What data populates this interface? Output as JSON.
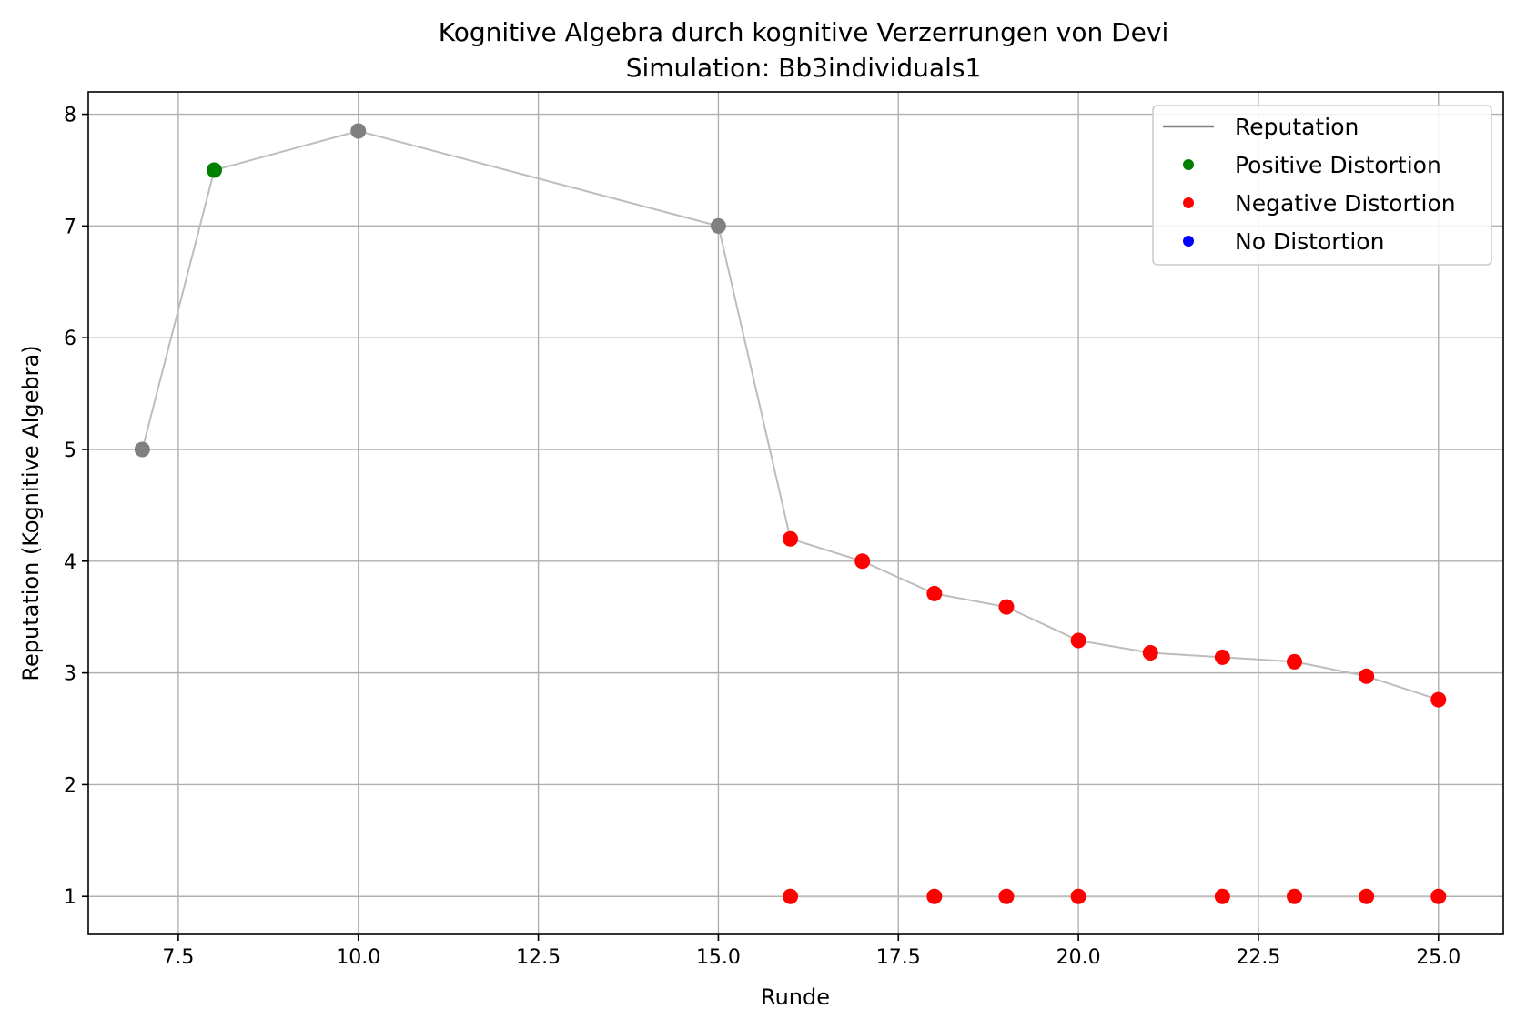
{
  "chart_data": {
    "type": "line",
    "title": "Kognitive Algebra durch kognitive Verzerrungen von Devi",
    "subtitle": "Simulation: Bb3individuals1",
    "xlabel": "Runde",
    "ylabel": "Reputation (Kognitive Algebra)",
    "xlim": [
      6.25,
      25.9
    ],
    "ylim": [
      0.66,
      8.2
    ],
    "xticks": [
      7.5,
      10.0,
      12.5,
      15.0,
      17.5,
      20.0,
      22.5,
      25.0
    ],
    "xtick_labels": [
      "7.5",
      "10.0",
      "12.5",
      "15.0",
      "17.5",
      "20.0",
      "22.5",
      "25.0"
    ],
    "yticks": [
      1,
      2,
      3,
      4,
      5,
      6,
      7,
      8
    ],
    "ytick_labels": [
      "1",
      "2",
      "3",
      "4",
      "5",
      "6",
      "7",
      "8"
    ],
    "grid": true,
    "legend_position": "top-right",
    "legend": [
      {
        "label": "Reputation",
        "kind": "line",
        "color": "#808080"
      },
      {
        "label": "Positive Distortion",
        "kind": "marker",
        "color": "#008000"
      },
      {
        "label": "Negative Distortion",
        "kind": "marker",
        "color": "#ff0000"
      },
      {
        "label": "No Distortion",
        "kind": "marker",
        "color": "#0000ff"
      }
    ],
    "series": [
      {
        "line_color": "#bdbdbd",
        "points": [
          {
            "x": 7,
            "y": 5.0,
            "color": "#808080"
          },
          {
            "x": 8,
            "y": 7.5,
            "color": "#008000"
          },
          {
            "x": 10,
            "y": 7.85,
            "color": "#808080"
          },
          {
            "x": 15,
            "y": 7.0,
            "color": "#808080"
          },
          {
            "x": 16,
            "y": 4.2,
            "color": "#ff0000"
          },
          {
            "x": 17,
            "y": 4.0,
            "color": "#ff0000"
          },
          {
            "x": 18,
            "y": 3.71,
            "color": "#ff0000"
          },
          {
            "x": 19,
            "y": 3.59,
            "color": "#ff0000"
          },
          {
            "x": 20,
            "y": 3.29,
            "color": "#ff0000"
          },
          {
            "x": 21,
            "y": 3.18,
            "color": "#ff0000"
          },
          {
            "x": 22,
            "y": 3.14,
            "color": "#ff0000"
          },
          {
            "x": 23,
            "y": 3.1,
            "color": "#ff0000"
          },
          {
            "x": 24,
            "y": 2.97,
            "color": "#ff0000"
          },
          {
            "x": 25,
            "y": 2.76,
            "color": "#ff0000"
          }
        ]
      },
      {
        "line_color": "#bdbdbd",
        "points": [
          {
            "x": 16,
            "y": 1.0,
            "color": "#ff0000"
          },
          {
            "x": 18,
            "y": 1.0,
            "color": "#ff0000"
          },
          {
            "x": 19,
            "y": 1.0,
            "color": "#ff0000"
          },
          {
            "x": 20,
            "y": 1.0,
            "color": "#ff0000"
          },
          {
            "x": 22,
            "y": 1.0,
            "color": "#ff0000"
          },
          {
            "x": 23,
            "y": 1.0,
            "color": "#ff0000"
          },
          {
            "x": 24,
            "y": 1.0,
            "color": "#ff0000"
          },
          {
            "x": 25,
            "y": 1.0,
            "color": "#ff0000"
          }
        ]
      }
    ]
  }
}
